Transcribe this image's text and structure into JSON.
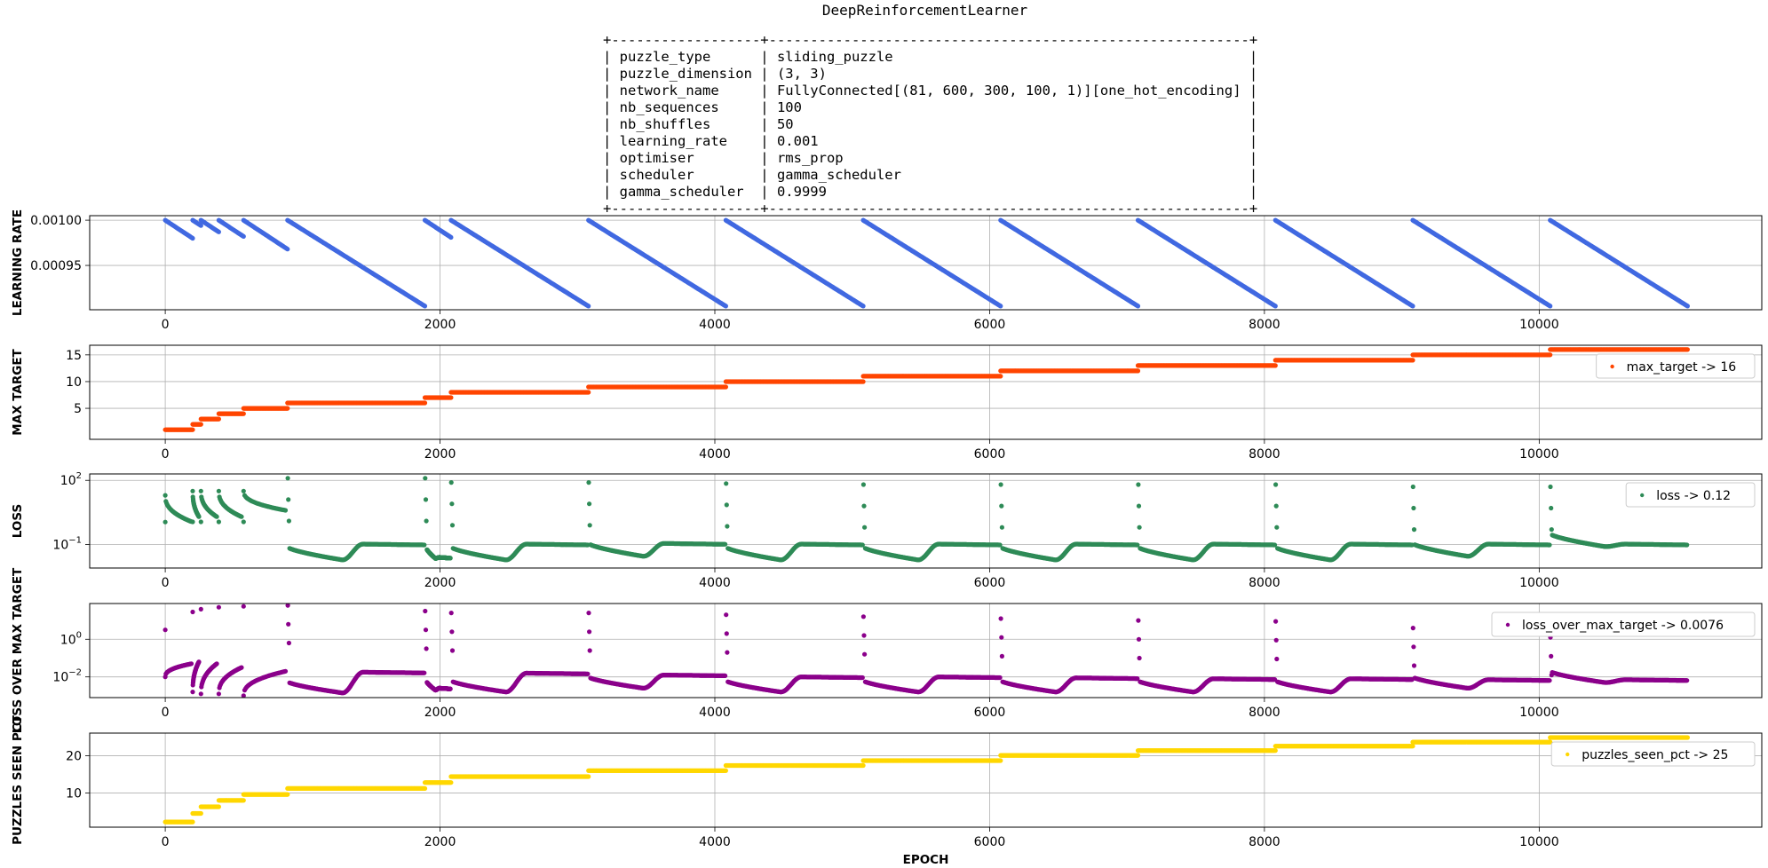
{
  "figure_title": "DeepReinforcementLearner",
  "params_table": {
    "rows": [
      {
        "key": "puzzle_type",
        "value": "sliding_puzzle"
      },
      {
        "key": "puzzle_dimension",
        "value": "(3, 3)"
      },
      {
        "key": "network_name",
        "value": "FullyConnected[(81, 600, 300, 100, 1)][one_hot_encoding]"
      },
      {
        "key": "nb_sequences",
        "value": "100"
      },
      {
        "key": "nb_shuffles",
        "value": "50"
      },
      {
        "key": "learning_rate",
        "value": "0.001"
      },
      {
        "key": "optimiser",
        "value": "rms_prop"
      },
      {
        "key": "scheduler",
        "value": "gamma_scheduler"
      },
      {
        "key": "gamma_scheduler",
        "value": "0.9999"
      }
    ]
  },
  "chart_data": [
    {
      "type": "scatter",
      "ylabel": "LEARNING RATE",
      "xlabel": "",
      "color": "#4169e1",
      "legend": null,
      "yscale": "linear",
      "ylim": [
        0.000901,
        0.001005
      ],
      "xlim": [
        -550,
        11620
      ],
      "xticks": [
        0,
        2000,
        4000,
        6000,
        8000,
        10000
      ],
      "yticks": [
        0.00095,
        0.001
      ],
      "ytick_labels": [
        "0.00095",
        "0.00100"
      ],
      "grid": true,
      "segments": [
        {
          "x0": 0,
          "x1": 200,
          "y0": 0.001,
          "y1": 0.00098
        },
        {
          "x0": 200,
          "x1": 260,
          "y0": 0.001,
          "y1": 0.000994
        },
        {
          "x0": 260,
          "x1": 390,
          "y0": 0.001,
          "y1": 0.000987
        },
        {
          "x0": 390,
          "x1": 570,
          "y0": 0.001,
          "y1": 0.000982
        },
        {
          "x0": 570,
          "x1": 890,
          "y0": 0.001,
          "y1": 0.000968
        },
        {
          "x0": 890,
          "x1": 1890,
          "y0": 0.001,
          "y1": 0.000905
        },
        {
          "x0": 1890,
          "x1": 2080,
          "y0": 0.001,
          "y1": 0.000981
        },
        {
          "x0": 2080,
          "x1": 3080,
          "y0": 0.001,
          "y1": 0.000905
        },
        {
          "x0": 3080,
          "x1": 4080,
          "y0": 0.001,
          "y1": 0.000905
        },
        {
          "x0": 4080,
          "x1": 5080,
          "y0": 0.001,
          "y1": 0.000905
        },
        {
          "x0": 5080,
          "x1": 6080,
          "y0": 0.001,
          "y1": 0.000905
        },
        {
          "x0": 6080,
          "x1": 7080,
          "y0": 0.001,
          "y1": 0.000905
        },
        {
          "x0": 7080,
          "x1": 8080,
          "y0": 0.001,
          "y1": 0.000905
        },
        {
          "x0": 8080,
          "x1": 9080,
          "y0": 0.001,
          "y1": 0.000905
        },
        {
          "x0": 9080,
          "x1": 10080,
          "y0": 0.001,
          "y1": 0.000905
        },
        {
          "x0": 10080,
          "x1": 11080,
          "y0": 0.001,
          "y1": 0.000905
        }
      ]
    },
    {
      "type": "scatter",
      "ylabel": "MAX TARGET",
      "xlabel": "",
      "color": "#ff4500",
      "legend": {
        "label": "max_target -> 16",
        "position": "right"
      },
      "yscale": "linear",
      "ylim": [
        -0.8,
        16.8
      ],
      "xlim": [
        -550,
        11620
      ],
      "xticks": [
        0,
        2000,
        4000,
        6000,
        8000,
        10000
      ],
      "yticks": [
        5,
        10,
        15
      ],
      "ytick_labels": [
        "5",
        "10",
        "15"
      ],
      "grid": true,
      "steps": [
        {
          "x0": 0,
          "x1": 200,
          "y": 1
        },
        {
          "x0": 200,
          "x1": 260,
          "y": 2
        },
        {
          "x0": 260,
          "x1": 390,
          "y": 3
        },
        {
          "x0": 390,
          "x1": 570,
          "y": 4
        },
        {
          "x0": 570,
          "x1": 890,
          "y": 5
        },
        {
          "x0": 890,
          "x1": 1890,
          "y": 6
        },
        {
          "x0": 1890,
          "x1": 2080,
          "y": 7
        },
        {
          "x0": 2080,
          "x1": 3080,
          "y": 8
        },
        {
          "x0": 3080,
          "x1": 4080,
          "y": 9
        },
        {
          "x0": 4080,
          "x1": 5080,
          "y": 10
        },
        {
          "x0": 5080,
          "x1": 6080,
          "y": 11
        },
        {
          "x0": 6080,
          "x1": 7080,
          "y": 12
        },
        {
          "x0": 7080,
          "x1": 8080,
          "y": 13
        },
        {
          "x0": 8080,
          "x1": 9080,
          "y": 14
        },
        {
          "x0": 9080,
          "x1": 10080,
          "y": 15
        },
        {
          "x0": 10080,
          "x1": 11080,
          "y": 16
        }
      ]
    },
    {
      "type": "scatter",
      "ylabel": "LOSS",
      "xlabel": "",
      "color": "#2e8b57",
      "legend": {
        "label": "loss -> 0.12",
        "position": "right"
      },
      "yscale": "log",
      "ylim_log10": [
        -2.1,
        2.3
      ],
      "xlim": [
        -550,
        11620
      ],
      "xticks": [
        0,
        2000,
        4000,
        6000,
        8000,
        10000
      ],
      "yticks_log10": [
        -1,
        2
      ],
      "ytick_labels": [
        "10",
        "10"
      ],
      "ytick_exponents": [
        "−1",
        "2"
      ],
      "grid": true,
      "early_spikes": [
        {
          "x": 0,
          "peak": 0.05,
          "end": 0.07,
          "end_x": 190,
          "final": 1.3
        },
        {
          "x": 200,
          "peak": 0.06,
          "end": 0.3,
          "end_x": 245,
          "final": 1.5
        },
        {
          "x": 260,
          "peak": 0.06,
          "end": 0.3,
          "end_x": 375,
          "final": 1.5
        },
        {
          "x": 390,
          "peak": 0.06,
          "end": 0.3,
          "end_x": 555,
          "final": 1.5
        },
        {
          "x": 570,
          "peak": 0.06,
          "end": 0.6,
          "end_x": 875,
          "final": 1.5
        }
      ],
      "cycles": [
        {
          "x0": 890,
          "x1": 1890,
          "peak": 2.1,
          "low": -1.72,
          "plateau": -0.98
        },
        {
          "x0": 1890,
          "x1": 2080,
          "peak": 2.1,
          "low": -1.65,
          "plateau": -1.6
        },
        {
          "x0": 2080,
          "x1": 3080,
          "peak": 1.9,
          "low": -1.72,
          "plateau": -0.98
        },
        {
          "x0": 3080,
          "x1": 4080,
          "peak": 1.9,
          "low": -1.55,
          "plateau": -0.95
        },
        {
          "x0": 4080,
          "x1": 5080,
          "peak": 1.85,
          "low": -1.72,
          "plateau": -0.98
        },
        {
          "x0": 5080,
          "x1": 6080,
          "peak": 1.8,
          "low": -1.72,
          "plateau": -0.98
        },
        {
          "x0": 6080,
          "x1": 7080,
          "peak": 1.8,
          "low": -1.72,
          "plateau": -0.98
        },
        {
          "x0": 7080,
          "x1": 8080,
          "peak": 1.8,
          "low": -1.72,
          "plateau": -0.98
        },
        {
          "x0": 8080,
          "x1": 9080,
          "peak": 1.8,
          "low": -1.72,
          "plateau": -0.98
        },
        {
          "x0": 9080,
          "x1": 10080,
          "peak": 1.7,
          "low": -1.55,
          "plateau": -0.98
        },
        {
          "x0": 10080,
          "x1": 11080,
          "peak": 1.7,
          "low": -1.1,
          "plateau": -0.98
        }
      ]
    },
    {
      "type": "scatter",
      "ylabel": "LOSS OVER MAX TARGET",
      "xlabel": "",
      "color": "#8b008b",
      "legend": {
        "label": "loss_over_max_target -> 0.0076",
        "position": "right"
      },
      "yscale": "log",
      "ylim_log10": [
        -3.1,
        1.9
      ],
      "xlim": [
        -550,
        11620
      ],
      "xticks": [
        0,
        2000,
        4000,
        6000,
        8000,
        10000
      ],
      "yticks_log10": [
        -2,
        0
      ],
      "ytick_labels": [
        "10",
        "10"
      ],
      "ytick_exponents": [
        "−2",
        "0"
      ],
      "grid": true,
      "early_spikes": [
        {
          "x": 0,
          "peak": 0.5,
          "end": -1.3,
          "end_x": 190,
          "final": -2.0
        },
        {
          "x": 200,
          "peak": 1.45,
          "end": -1.2,
          "end_x": 245,
          "final": -2.8
        },
        {
          "x": 260,
          "peak": 1.6,
          "end": -1.3,
          "end_x": 375,
          "final": -2.9
        },
        {
          "x": 390,
          "peak": 1.7,
          "end": -1.5,
          "end_x": 555,
          "final": -2.9
        },
        {
          "x": 570,
          "peak": 1.75,
          "end": -1.7,
          "end_x": 875,
          "final": -3.0
        }
      ],
      "cycles": [
        {
          "x0": 890,
          "x1": 1890,
          "peak": 1.8,
          "low": -2.85,
          "plateau": -1.75
        },
        {
          "x0": 1890,
          "x1": 2080,
          "peak": 1.5,
          "low": -2.7,
          "plateau": -2.6
        },
        {
          "x0": 2080,
          "x1": 3080,
          "peak": 1.4,
          "low": -2.8,
          "plateau": -1.8
        },
        {
          "x0": 3080,
          "x1": 4080,
          "peak": 1.4,
          "low": -2.6,
          "plateau": -1.9
        },
        {
          "x0": 4080,
          "x1": 5080,
          "peak": 1.3,
          "low": -2.8,
          "plateau": -2.0
        },
        {
          "x0": 5080,
          "x1": 6080,
          "peak": 1.2,
          "low": -2.8,
          "plateau": -2.0
        },
        {
          "x0": 6080,
          "x1": 7080,
          "peak": 1.1,
          "low": -2.8,
          "plateau": -2.05
        },
        {
          "x0": 7080,
          "x1": 8080,
          "peak": 1.0,
          "low": -2.8,
          "plateau": -2.1
        },
        {
          "x0": 8080,
          "x1": 9080,
          "peak": 0.95,
          "low": -2.8,
          "plateau": -2.1
        },
        {
          "x0": 9080,
          "x1": 10080,
          "peak": 0.6,
          "low": -2.6,
          "plateau": -2.15
        },
        {
          "x0": 10080,
          "x1": 11080,
          "peak": 0.1,
          "low": -2.3,
          "plateau": -2.15
        }
      ]
    },
    {
      "type": "scatter",
      "ylabel": "PUZZLES SEEN PCT",
      "xlabel": "EPOCH",
      "color": "#ffd700",
      "legend": {
        "label": "puzzles_seen_pct -> 25",
        "position": "right"
      },
      "yscale": "linear",
      "ylim": [
        0.8,
        26.1
      ],
      "xlim": [
        -550,
        11620
      ],
      "xticks": [
        0,
        2000,
        4000,
        6000,
        8000,
        10000
      ],
      "yticks": [
        10,
        20
      ],
      "ytick_labels": [
        "10",
        "20"
      ],
      "grid": true,
      "steps": [
        {
          "x0": 0,
          "x1": 200,
          "y": 2.2
        },
        {
          "x0": 200,
          "x1": 260,
          "y": 4.5
        },
        {
          "x0": 260,
          "x1": 390,
          "y": 6.3
        },
        {
          "x0": 390,
          "x1": 570,
          "y": 8.0
        },
        {
          "x0": 570,
          "x1": 890,
          "y": 9.6
        },
        {
          "x0": 890,
          "x1": 1890,
          "y": 11.2
        },
        {
          "x0": 1890,
          "x1": 2080,
          "y": 12.8
        },
        {
          "x0": 2080,
          "x1": 3080,
          "y": 14.4
        },
        {
          "x0": 3080,
          "x1": 4080,
          "y": 16.0
        },
        {
          "x0": 4080,
          "x1": 5080,
          "y": 17.4
        },
        {
          "x0": 5080,
          "x1": 6080,
          "y": 18.7
        },
        {
          "x0": 6080,
          "x1": 7080,
          "y": 20.1
        },
        {
          "x0": 7080,
          "x1": 8080,
          "y": 21.4
        },
        {
          "x0": 8080,
          "x1": 9080,
          "y": 22.6
        },
        {
          "x0": 9080,
          "x1": 10080,
          "y": 23.7
        },
        {
          "x0": 10080,
          "x1": 11080,
          "y": 24.9
        }
      ]
    }
  ]
}
